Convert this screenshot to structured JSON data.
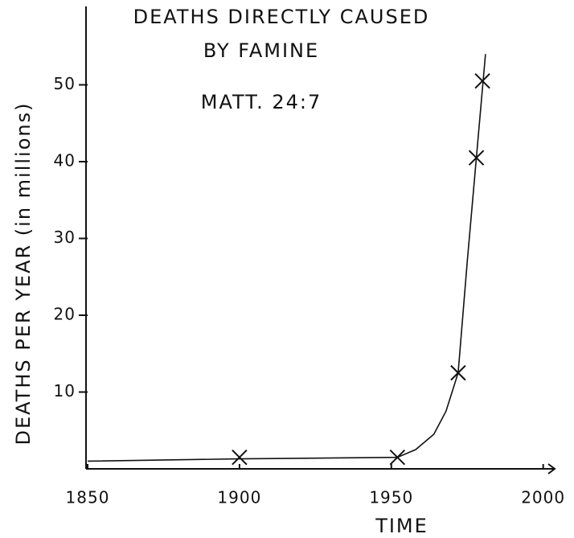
{
  "chart_data": {
    "type": "line",
    "title": "DEATHS DIRECTLY CAUSED",
    "subtitle": "BY FAMINE",
    "annotation": "MATT. 24:7",
    "xlabel": "TIME",
    "ylabel": "DEATHS PER YEAR (in millions)",
    "xlim": [
      1850,
      2003
    ],
    "ylim": [
      0,
      60
    ],
    "xticks": [
      1850,
      1900,
      1950,
      2000
    ],
    "yticks": [
      10,
      20,
      30,
      40,
      50
    ],
    "color": "#111111",
    "points": {
      "x": [
        1900,
        1952,
        1972,
        1978,
        1980
      ],
      "values": [
        1.5,
        1.5,
        12.5,
        40.5,
        50.5
      ]
    },
    "curve": {
      "x": [
        1850,
        1900,
        1952,
        1958,
        1964,
        1968,
        1970,
        1972,
        1975,
        1978,
        1981
      ],
      "values": [
        1,
        1.3,
        1.5,
        2.5,
        4.5,
        7.5,
        10,
        12.5,
        27,
        40.5,
        54
      ]
    }
  }
}
